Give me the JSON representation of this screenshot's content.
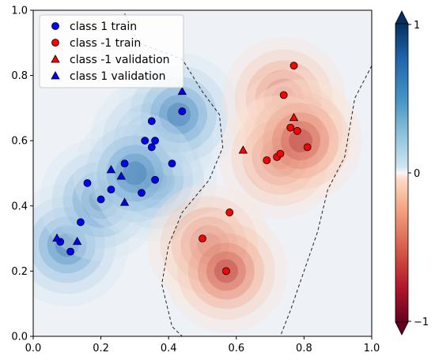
{
  "chart_data": {
    "type": "scatter",
    "title": "",
    "xlabel": "",
    "ylabel": "",
    "xlim": [
      0,
      1
    ],
    "ylim": [
      0,
      1
    ],
    "xticks": [
      "0.0",
      "0.2",
      "0.4",
      "0.6",
      "0.8",
      "1.0"
    ],
    "yticks": [
      "0.0",
      "0.2",
      "0.4",
      "0.6",
      "0.8",
      "1.0"
    ],
    "background": "decision-function filled contours (blue positive, red negative) with dashed zero contour",
    "legend": {
      "placement": "top-left",
      "entries": [
        {
          "label": "class 1 train",
          "marker": "circle",
          "color": "#0000ff"
        },
        {
          "label": "class -1 train",
          "marker": "circle",
          "color": "#ff0000"
        },
        {
          "label": "class -1 validation",
          "marker": "triangle",
          "color": "#ff0000"
        },
        {
          "label": "class 1 validation",
          "marker": "triangle",
          "color": "#0000ff"
        }
      ]
    },
    "colorbar": {
      "range": [
        -1,
        1
      ],
      "tick_labels": [
        "1",
        "0",
        "−1"
      ],
      "colormap": "RdBu"
    },
    "series": [
      {
        "name": "class 1 train",
        "marker": "circle",
        "color": "#0000ff",
        "points": [
          [
            0.08,
            0.29
          ],
          [
            0.11,
            0.26
          ],
          [
            0.14,
            0.35
          ],
          [
            0.16,
            0.47
          ],
          [
            0.2,
            0.42
          ],
          [
            0.23,
            0.45
          ],
          [
            0.27,
            0.53
          ],
          [
            0.32,
            0.44
          ],
          [
            0.33,
            0.6
          ],
          [
            0.35,
            0.58
          ],
          [
            0.35,
            0.66
          ],
          [
            0.36,
            0.6
          ],
          [
            0.36,
            0.48
          ],
          [
            0.41,
            0.53
          ],
          [
            0.44,
            0.69
          ]
        ]
      },
      {
        "name": "class -1 train",
        "marker": "circle",
        "color": "#ff0000",
        "points": [
          [
            0.5,
            0.3
          ],
          [
            0.57,
            0.2
          ],
          [
            0.58,
            0.38
          ],
          [
            0.69,
            0.54
          ],
          [
            0.72,
            0.55
          ],
          [
            0.73,
            0.56
          ],
          [
            0.74,
            0.74
          ],
          [
            0.76,
            0.64
          ],
          [
            0.77,
            0.83
          ],
          [
            0.78,
            0.63
          ],
          [
            0.81,
            0.58
          ]
        ]
      },
      {
        "name": "class -1 validation",
        "marker": "triangle",
        "color": "#ff0000",
        "points": [
          [
            0.62,
            0.57
          ],
          [
            0.77,
            0.67
          ]
        ]
      },
      {
        "name": "class 1 validation",
        "marker": "triangle",
        "color": "#0000ff",
        "points": [
          [
            0.07,
            0.3
          ],
          [
            0.13,
            0.29
          ],
          [
            0.23,
            0.51
          ],
          [
            0.26,
            0.49
          ],
          [
            0.27,
            0.41
          ],
          [
            0.44,
            0.75
          ]
        ]
      }
    ],
    "contour_centers": {
      "positive": [
        [
          0.1,
          0.28
        ],
        [
          0.2,
          0.42
        ],
        [
          0.35,
          0.6
        ],
        [
          0.36,
          0.48
        ],
        [
          0.43,
          0.68
        ],
        [
          0.3,
          0.5
        ]
      ],
      "negative": [
        [
          0.52,
          0.28
        ],
        [
          0.57,
          0.2
        ],
        [
          0.74,
          0.73
        ],
        [
          0.77,
          0.63
        ],
        [
          0.73,
          0.55
        ],
        [
          0.79,
          0.6
        ]
      ]
    }
  }
}
